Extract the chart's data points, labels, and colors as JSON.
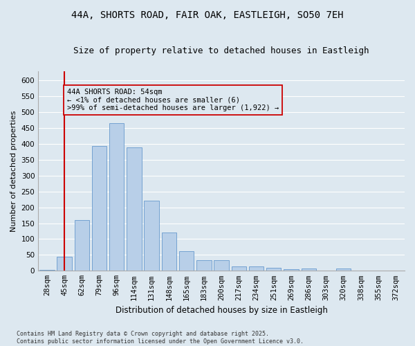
{
  "title_line1": "44A, SHORTS ROAD, FAIR OAK, EASTLEIGH, SO50 7EH",
  "title_line2": "Size of property relative to detached houses in Eastleigh",
  "xlabel": "Distribution of detached houses by size in Eastleigh",
  "ylabel": "Number of detached properties",
  "footer": "Contains HM Land Registry data © Crown copyright and database right 2025.\nContains public sector information licensed under the Open Government Licence v3.0.",
  "annotation_line1": "44A SHORTS ROAD: 54sqm",
  "annotation_line2": "← <1% of detached houses are smaller (6)",
  "annotation_line3": ">99% of semi-detached houses are larger (1,922) →",
  "bar_color": "#b8cfe8",
  "bar_edge_color": "#6699cc",
  "vline_color": "#cc0000",
  "vline_x": 1.0,
  "background_color": "#dde8f0",
  "categories": [
    "28sqm",
    "45sqm",
    "62sqm",
    "79sqm",
    "96sqm",
    "114sqm",
    "131sqm",
    "148sqm",
    "165sqm",
    "183sqm",
    "200sqm",
    "217sqm",
    "234sqm",
    "251sqm",
    "269sqm",
    "286sqm",
    "303sqm",
    "320sqm",
    "338sqm",
    "355sqm",
    "372sqm"
  ],
  "values": [
    3,
    44,
    160,
    393,
    465,
    388,
    221,
    120,
    62,
    33,
    34,
    14,
    14,
    10,
    6,
    7,
    0,
    8,
    0,
    0,
    0
  ],
  "ylim": [
    0,
    630
  ],
  "yticks": [
    0,
    50,
    100,
    150,
    200,
    250,
    300,
    350,
    400,
    450,
    500,
    550,
    600
  ],
  "grid_color": "#ffffff",
  "title_fontsize": 10,
  "subtitle_fontsize": 9,
  "xlabel_fontsize": 8.5,
  "ylabel_fontsize": 8,
  "tick_fontsize": 7.5,
  "footer_fontsize": 6,
  "ann_fontsize": 7.5
}
